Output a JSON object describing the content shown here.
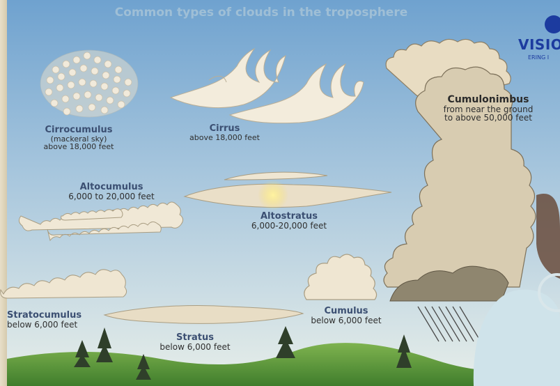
{
  "title": "Common types of clouds in the troposphere",
  "logo": {
    "text": "VISIO",
    "tagline": "ERING I"
  },
  "clouds": [
    {
      "id": "cirrocumulus",
      "name": "Cirrocumulus",
      "lines": [
        "(mackeral sky)",
        "above 18,000 feet"
      ]
    },
    {
      "id": "cirrus",
      "name": "Cirrus",
      "lines": [
        "above 18,000 feet"
      ]
    },
    {
      "id": "cumulonimbus",
      "name": "Cumulonimbus",
      "lines": [
        "from near the ground",
        "to above 50,000 feet"
      ]
    },
    {
      "id": "altocumulus",
      "name": "Altocumulus",
      "lines": [
        "6,000 to 20,000 feet"
      ]
    },
    {
      "id": "altostratus",
      "name": "Altostratus",
      "lines": [
        "6,000-20,000 feet"
      ]
    },
    {
      "id": "cumulus",
      "name": "Cumulus",
      "lines": [
        "below 6,000 feet"
      ]
    },
    {
      "id": "stratocumulus",
      "name": "Stratocumulus",
      "lines": [
        "below 6,000 feet"
      ]
    },
    {
      "id": "stratus",
      "name": "Stratus",
      "lines": [
        "below 6,000 feet"
      ]
    }
  ]
}
